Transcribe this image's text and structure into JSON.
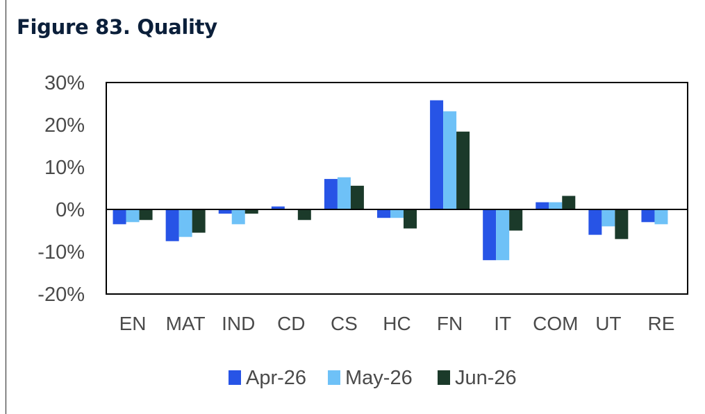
{
  "figure": {
    "title": "Figure 83. Quality"
  },
  "chart_data": {
    "type": "bar",
    "categories": [
      "EN",
      "MAT",
      "IND",
      "CD",
      "CS",
      "HC",
      "FN",
      "IT",
      "COM",
      "UT",
      "RE"
    ],
    "series": [
      {
        "name": "Apr-26",
        "color": "#2754e6",
        "values": [
          -3.5,
          -7.5,
          -1.0,
          0.7,
          7.2,
          -2.0,
          25.8,
          -12.0,
          1.7,
          -6.0,
          -3.0
        ]
      },
      {
        "name": "May-26",
        "color": "#6ec1f7",
        "values": [
          -3.0,
          -6.5,
          -3.5,
          0.0,
          7.6,
          -2.0,
          23.2,
          -12.0,
          1.7,
          -4.0,
          -3.5
        ]
      },
      {
        "name": "Jun-26",
        "color": "#1b3a2a",
        "values": [
          -2.5,
          -5.5,
          -1.0,
          -2.5,
          5.6,
          -4.5,
          18.4,
          -5.0,
          3.2,
          -7.0,
          0.0
        ]
      }
    ],
    "y_ticks": [
      "30%",
      "20%",
      "10%",
      "0%",
      "-10%",
      "-20%"
    ],
    "ylim": [
      -20,
      30
    ],
    "ylabel": "",
    "xlabel": "",
    "grid": false,
    "legend_position": "bottom"
  }
}
